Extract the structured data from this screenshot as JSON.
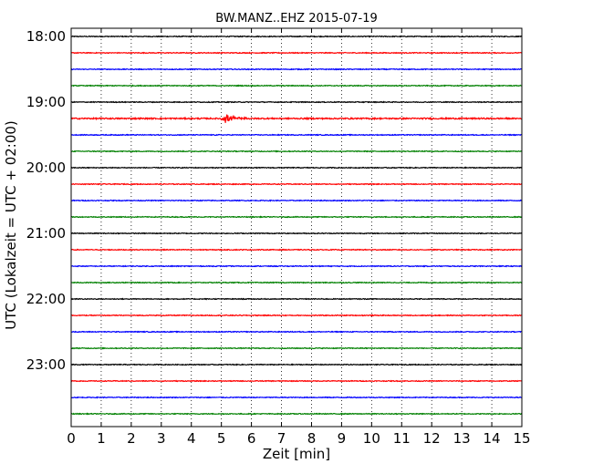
{
  "chart_data": {
    "type": "line",
    "title": "BW.MANZ..EHZ 2015-07-19",
    "xlabel": "Zeit  [min]",
    "ylabel": "UTC (Lokalzeit = UTC + 02:00)",
    "xlim": [
      0,
      15
    ],
    "x_ticks": [
      "0",
      "1",
      "2",
      "3",
      "4",
      "5",
      "6",
      "7",
      "8",
      "9",
      "10",
      "11",
      "12",
      "13",
      "14",
      "15"
    ],
    "y_tick_labels": [
      "18:00",
      "19:00",
      "20:00",
      "21:00",
      "22:00",
      "23:00"
    ],
    "grid": "vertical dotted",
    "trace_colors": [
      "#000000",
      "#ff0000",
      "#0000ff",
      "#008000"
    ],
    "series": [
      {
        "start": "18:00",
        "noise": 0.05,
        "event": null
      },
      {
        "start": "18:15",
        "noise": 0.05,
        "event": null
      },
      {
        "start": "18:30",
        "noise": 0.05,
        "event": null
      },
      {
        "start": "18:45",
        "noise": 0.05,
        "event": null
      },
      {
        "start": "19:00",
        "noise": 0.05,
        "event": null
      },
      {
        "start": "19:15",
        "noise": 0.08,
        "event": {
          "x": 5.0,
          "amplitude": 0.55,
          "duration": 1.0
        }
      },
      {
        "start": "19:30",
        "noise": 0.05,
        "event": null
      },
      {
        "start": "19:45",
        "noise": 0.05,
        "event": null
      },
      {
        "start": "20:00",
        "noise": 0.05,
        "event": null
      },
      {
        "start": "20:15",
        "noise": 0.05,
        "event": null
      },
      {
        "start": "20:30",
        "noise": 0.05,
        "event": null
      },
      {
        "start": "20:45",
        "noise": 0.05,
        "event": null
      },
      {
        "start": "21:00",
        "noise": 0.05,
        "event": null
      },
      {
        "start": "21:15",
        "noise": 0.05,
        "event": null
      },
      {
        "start": "21:30",
        "noise": 0.05,
        "event": null
      },
      {
        "start": "21:45",
        "noise": 0.05,
        "event": null
      },
      {
        "start": "22:00",
        "noise": 0.05,
        "event": null
      },
      {
        "start": "22:15",
        "noise": 0.05,
        "event": null
      },
      {
        "start": "22:30",
        "noise": 0.05,
        "event": null
      },
      {
        "start": "22:45",
        "noise": 0.05,
        "event": null
      },
      {
        "start": "23:00",
        "noise": 0.05,
        "event": null
      },
      {
        "start": "23:15",
        "noise": 0.05,
        "event": null
      },
      {
        "start": "23:30",
        "noise": 0.05,
        "event": null
      },
      {
        "start": "23:45",
        "noise": 0.05,
        "event": null
      }
    ]
  }
}
